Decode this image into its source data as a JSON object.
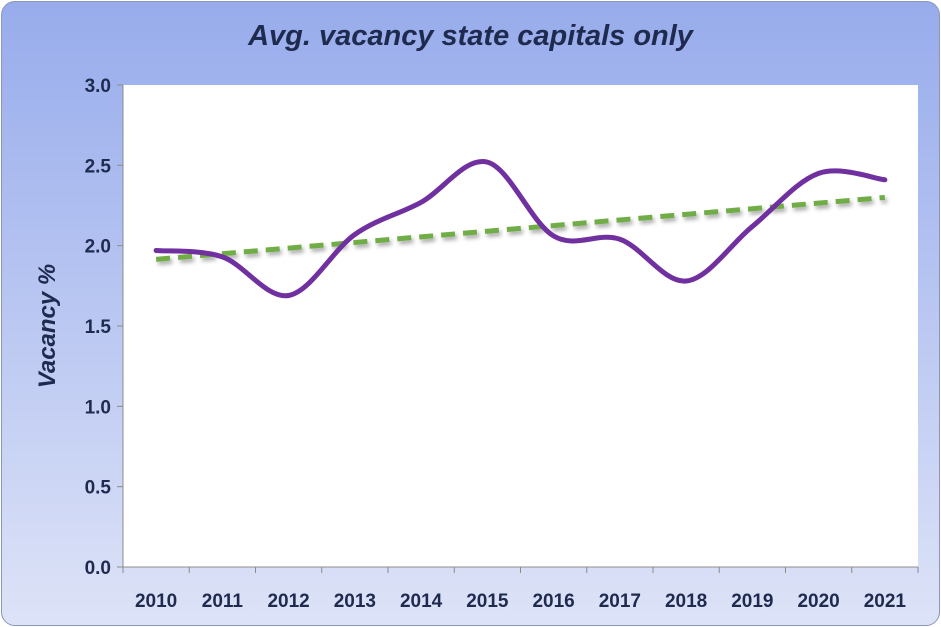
{
  "chart_data": {
    "type": "line",
    "title": "Avg. vacancy state capitals only",
    "ylabel": "Vacancy %",
    "xlabel": "",
    "categories": [
      "2010",
      "2011",
      "2012",
      "2013",
      "2014",
      "2015",
      "2016",
      "2017",
      "2018",
      "2019",
      "2020",
      "2021"
    ],
    "yticks": [
      "0.0",
      "0.5",
      "1.0",
      "1.5",
      "2.0",
      "2.5",
      "3.0"
    ],
    "ylim": [
      0,
      3
    ],
    "series": [
      {
        "values": [
          1.97,
          1.93,
          1.69,
          2.07,
          2.27,
          2.52,
          2.06,
          2.04,
          1.78,
          2.12,
          2.45,
          2.41
        ],
        "color": "#7030a0",
        "style": "smooth-solid"
      },
      {
        "values": [
          1.915,
          1.95,
          1.985,
          2.02,
          2.055,
          2.09,
          2.125,
          2.16,
          2.195,
          2.23,
          2.265,
          2.3
        ],
        "color": "#70ad47",
        "style": "dashed-linear-trend"
      }
    ],
    "grid": false,
    "legend": "none"
  }
}
